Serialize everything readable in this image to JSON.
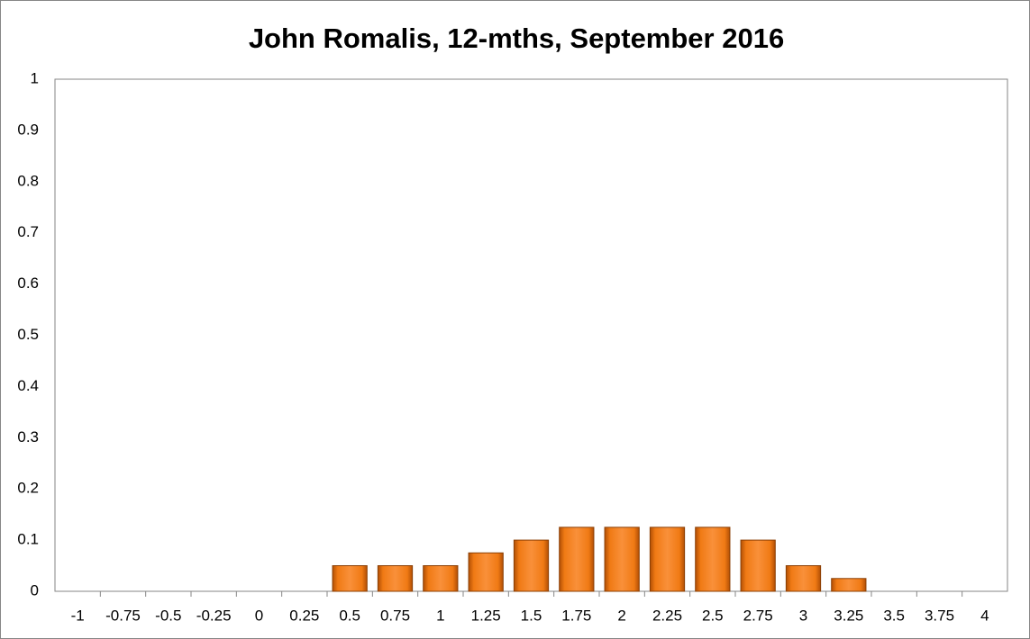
{
  "chart_data": {
    "type": "bar",
    "title": "John Romalis, 12-mths, September 2016",
    "categories": [
      "-1",
      "-0.75",
      "-0.5",
      "-0.25",
      "0",
      "0.25",
      "0.5",
      "0.75",
      "1",
      "1.25",
      "1.5",
      "1.75",
      "2",
      "2.25",
      "2.5",
      "2.75",
      "3",
      "3.25",
      "3.5",
      "3.75",
      "4"
    ],
    "values": [
      0,
      0,
      0,
      0,
      0,
      0,
      0.05,
      0.05,
      0.05,
      0.075,
      0.1,
      0.125,
      0.125,
      0.125,
      0.125,
      0.1,
      0.05,
      0.025,
      0,
      0,
      0
    ],
    "color": "#e46c0a",
    "ylim": [
      0,
      1
    ],
    "yticks": [
      0,
      0.1,
      0.2,
      0.3,
      0.4,
      0.5,
      0.6,
      0.7,
      0.8,
      0.9,
      1
    ],
    "grid": false
  }
}
